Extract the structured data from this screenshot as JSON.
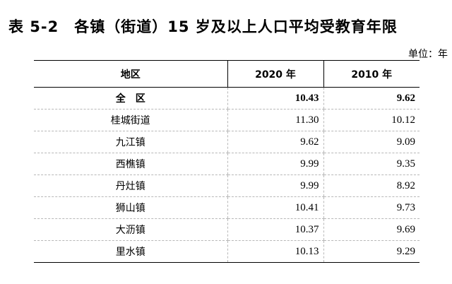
{
  "title": "表 5-2　各镇（街道）15 岁及以上人口平均受教育年限",
  "unit_label": "单位：年",
  "table": {
    "headers": [
      "地区",
      "2020 年",
      "2010 年"
    ],
    "rows": [
      {
        "name": "全　区",
        "v2020": "10.43",
        "v2010": "9.62"
      },
      {
        "name": "桂城街道",
        "v2020": "11.30",
        "v2010": "10.12"
      },
      {
        "name": "九江镇",
        "v2020": "9.62",
        "v2010": "9.09"
      },
      {
        "name": "西樵镇",
        "v2020": "9.99",
        "v2010": "9.35"
      },
      {
        "name": "丹灶镇",
        "v2020": "9.99",
        "v2010": "8.92"
      },
      {
        "name": "狮山镇",
        "v2020": "10.41",
        "v2010": "9.73"
      },
      {
        "name": "大沥镇",
        "v2020": "10.37",
        "v2010": "9.69"
      },
      {
        "name": "里水镇",
        "v2020": "10.13",
        "v2010": "9.29"
      }
    ]
  }
}
